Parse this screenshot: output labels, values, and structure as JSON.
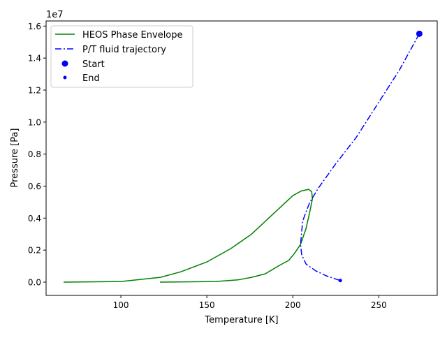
{
  "chart_data": {
    "type": "line",
    "title": "",
    "xlabel": "Temperature [K]",
    "ylabel": "Pressure [Pa]",
    "y_offset_label": "1e7",
    "xlim": [
      56.5,
      284
    ],
    "ylim": [
      -0.083,
      1.632
    ],
    "xticks": [
      100,
      150,
      200,
      250
    ],
    "xtick_labels": [
      "100",
      "150",
      "200",
      "250"
    ],
    "yticks": [
      0,
      0.2,
      0.4,
      0.6,
      0.8,
      1.0,
      1.2,
      1.4,
      1.6
    ],
    "ytick_labels": [
      "0.0",
      "0.2",
      "0.4",
      "0.6",
      "0.8",
      "1.0",
      "1.2",
      "1.4",
      "1.6"
    ],
    "grid": false,
    "legend_position": "top-left",
    "series": [
      {
        "name": "HEOS Phase Envelope",
        "color": "#008000",
        "style": "solid",
        "x": [
          66.7,
          100,
          123,
          135,
          150,
          164,
          176,
          188,
          200,
          205,
          209.2,
          211,
          211.4,
          209.5,
          207.7,
          204.5,
          201,
          197.6,
          192.3,
          184,
          176,
          168,
          155,
          122.7
        ],
        "y": [
          0,
          0.004,
          0.03,
          0.065,
          0.126,
          0.21,
          0.3,
          0.42,
          0.54,
          0.57,
          0.58,
          0.565,
          0.52,
          0.42,
          0.336,
          0.235,
          0.18,
          0.135,
          0.105,
          0.052,
          0.03,
          0.014,
          0.004,
          0
        ]
      },
      {
        "name": "P/T fluid trajectory",
        "color": "#0000ff",
        "style": "dashdot",
        "x": [
          273.6,
          262,
          249,
          237,
          224.8,
          214.6,
          209.8,
          207.7,
          205.7,
          204.5,
          205.2,
          207.7,
          213.4,
          219.5,
          227.6
        ],
        "y": [
          1.552,
          1.325,
          1.107,
          0.906,
          0.737,
          0.584,
          0.497,
          0.44,
          0.38,
          0.235,
          0.17,
          0.113,
          0.07,
          0.039,
          0.01
        ]
      }
    ],
    "markers": [
      {
        "name": "Start",
        "x": 273.6,
        "y": 1.552,
        "color": "#0000ff",
        "size": "large"
      },
      {
        "name": "End",
        "x": 227.6,
        "y": 0.01,
        "color": "#0000ff",
        "size": "small"
      }
    ]
  }
}
